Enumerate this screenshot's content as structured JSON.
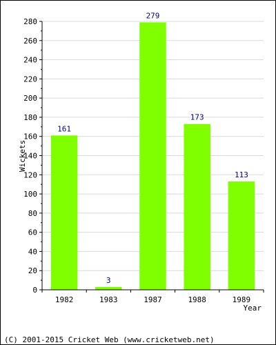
{
  "chart_data": {
    "type": "bar",
    "categories": [
      "1982",
      "1983",
      "1987",
      "1988",
      "1989"
    ],
    "values": [
      161,
      3,
      279,
      173,
      113
    ],
    "data_labels": [
      "161",
      "3",
      "279",
      "173",
      "113"
    ],
    "xlabel": "Year",
    "ylabel": "Wickets",
    "ylim": [
      0,
      280
    ],
    "yticks": [
      0,
      20,
      40,
      60,
      80,
      100,
      120,
      140,
      160,
      180,
      200,
      220,
      240,
      260,
      280
    ],
    "grid": true,
    "legend": "none",
    "bar_color": "#80ff00",
    "label_color": "#000080"
  },
  "footer": {
    "copyright": "(C) 2001-2015 Cricket Web (www.cricketweb.net)"
  }
}
